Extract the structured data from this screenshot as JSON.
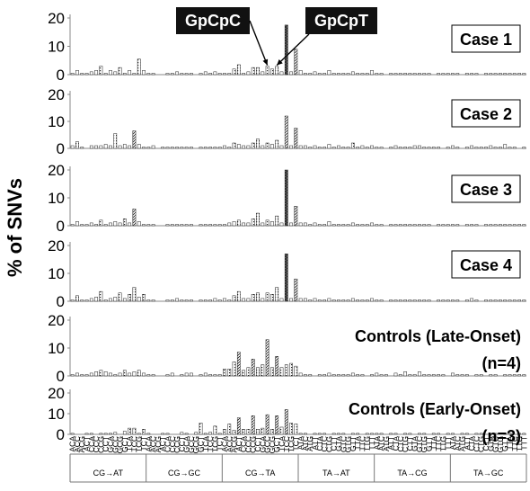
{
  "chart_data": {
    "type": "bar",
    "ylabel": "% of SNVs",
    "ylim": [
      0,
      20
    ],
    "yticks": [
      0,
      10,
      20
    ],
    "grid": false,
    "groups": [
      "CG→AT",
      "CG→GC",
      "CG→TA",
      "TA→AT",
      "TA→CG",
      "TA→GC"
    ],
    "categories": [
      "ACA",
      "ACC",
      "ACG",
      "ACT",
      "CCA",
      "CCC",
      "CCG",
      "CCT",
      "GCA",
      "GCC",
      "GCG",
      "GCT",
      "TCA",
      "TCC",
      "TCG",
      "TCT",
      "ACA",
      "ACC",
      "ACG",
      "ACT",
      "CCA",
      "CCC",
      "CCG",
      "CCT",
      "GCA",
      "GCC",
      "GCG",
      "GCT",
      "TCA",
      "TCC",
      "TCG",
      "TCT",
      "ACA",
      "ACC",
      "ACG",
      "ACT",
      "CCA",
      "CCC",
      "CCG",
      "CCT",
      "GCA",
      "GCC",
      "GCG",
      "GCT",
      "TCA",
      "TCC",
      "TCG",
      "TCT",
      "ATA",
      "ATC",
      "ATG",
      "ATT",
      "CTA",
      "CTC",
      "CTG",
      "CTT",
      "GTA",
      "GTC",
      "GTG",
      "GTT",
      "TTA",
      "TTC",
      "TTG",
      "TTT",
      "ATA",
      "ATC",
      "ATG",
      "ATT",
      "CTA",
      "CTC",
      "CTG",
      "CTT",
      "GTA",
      "GTC",
      "GTG",
      "GTT",
      "TTA",
      "TTC",
      "TTG",
      "TTT",
      "ATA",
      "ATC",
      "ATG",
      "ATT",
      "CTA",
      "CTC",
      "CTG",
      "CTT",
      "GTA",
      "GTC",
      "GTG",
      "GTT",
      "TTA",
      "TTC",
      "TTG",
      "TTT"
    ],
    "annotations": [
      {
        "text": "GpCpC",
        "panel": 0,
        "category_index": 41
      },
      {
        "text": "GpCpT",
        "panel": 0,
        "category_index": 43
      }
    ],
    "series": [
      {
        "name": "Case 1",
        "values": [
          0.5,
          1.5,
          0.5,
          0.5,
          1,
          1.5,
          3,
          0.5,
          1.5,
          1,
          2.5,
          0.5,
          1.5,
          0.5,
          5.5,
          1.5,
          0.5,
          0.5,
          0,
          0,
          0.5,
          0.5,
          1,
          0.5,
          0.5,
          0.5,
          0,
          0.5,
          1,
          0.5,
          1,
          0.5,
          0.5,
          0.5,
          2,
          3.5,
          0.5,
          1,
          2.5,
          2.5,
          1,
          3,
          2,
          3,
          1,
          17.5,
          1,
          9,
          1.5,
          0.5,
          0.5,
          1,
          0.5,
          0.5,
          1.5,
          0.5,
          0.5,
          0.5,
          0.5,
          1,
          0.5,
          0.5,
          0.5,
          1.5,
          0.5,
          0.5,
          0,
          0.5,
          0.5,
          0.5,
          0.5,
          0.5,
          0.5,
          0.5,
          0.5,
          0.5,
          0,
          0.5,
          0.5,
          0.5,
          0.5,
          0.5,
          0,
          0.5,
          0.5,
          0.5,
          0,
          0.5,
          0.5,
          0.5,
          0.5,
          0.5,
          0.5,
          0.5,
          0.5,
          0.5
        ]
      },
      {
        "name": "Case 2",
        "values": [
          1,
          2.5,
          0.5,
          0,
          1,
          1,
          1,
          1.5,
          1,
          5.5,
          1,
          1.5,
          1,
          6.5,
          1.5,
          0.5,
          0.5,
          1,
          0,
          0.5,
          0.5,
          0.5,
          0.5,
          0.5,
          0.5,
          0.5,
          0,
          0.5,
          0.5,
          0.5,
          0.5,
          0.5,
          1,
          0.5,
          2,
          1.5,
          1,
          1,
          2,
          3.5,
          1,
          2,
          1.5,
          3,
          1,
          12,
          1,
          7.5,
          1,
          1,
          0.5,
          1,
          0.5,
          0.5,
          1.5,
          0.5,
          1,
          0.5,
          0.5,
          2,
          0.5,
          1,
          0.5,
          1,
          0.5,
          0.5,
          0,
          0.5,
          1,
          0.5,
          0.5,
          0.5,
          1,
          1,
          0.5,
          0.5,
          0.5,
          0.5,
          0,
          0.5,
          1,
          0.5,
          0,
          0.5,
          1,
          0.5,
          0.5,
          0.5,
          1,
          0.5,
          0.5,
          1.5,
          0.5,
          0.5,
          0,
          0.5
        ]
      },
      {
        "name": "Case 3",
        "values": [
          0.5,
          1.5,
          0.5,
          0.5,
          1,
          0.5,
          2,
          0.5,
          1,
          1.5,
          1,
          2.5,
          1,
          6,
          1.5,
          0.5,
          0.5,
          0.5,
          0,
          0,
          0.5,
          0.5,
          0.5,
          0.5,
          0.5,
          0.5,
          0,
          0.5,
          0.5,
          0.5,
          0.5,
          0.5,
          0.5,
          1,
          1.5,
          2,
          1,
          1,
          2.5,
          4.5,
          1,
          2,
          1.5,
          3.5,
          1,
          20,
          1,
          7,
          1,
          1,
          0.5,
          1,
          0.5,
          0.5,
          1.5,
          0.5,
          0.5,
          0.5,
          0.5,
          1,
          0.5,
          0.5,
          0.5,
          1,
          0.5,
          0.5,
          0,
          0.5,
          0.5,
          0.5,
          0.5,
          0.5,
          0.5,
          0.5,
          0.5,
          0.5,
          0,
          0.5,
          0.5,
          0.5,
          0.5,
          0.5,
          0,
          0.5,
          0.5,
          0.5,
          0,
          0.5,
          0.5,
          0.5,
          0.5,
          0.5,
          0.5,
          0.5,
          0.5,
          0.5
        ]
      },
      {
        "name": "Case 4",
        "values": [
          0.5,
          2,
          0.5,
          0.5,
          1,
          1.5,
          3.5,
          0.5,
          1,
          1.5,
          3,
          1,
          2.5,
          5,
          1.5,
          2.5,
          0.5,
          0.5,
          0,
          0,
          0.5,
          0.5,
          1,
          0.5,
          0.5,
          0.5,
          0,
          0.5,
          0.5,
          0.5,
          1,
          0.5,
          1,
          0.5,
          2,
          3.5,
          1,
          1,
          2.5,
          3,
          1,
          3,
          2.5,
          5,
          1,
          17,
          1,
          8,
          1,
          1,
          0.5,
          1,
          0.5,
          0.5,
          1,
          0.5,
          0.5,
          0.5,
          0.5,
          1,
          0.5,
          0.5,
          0.5,
          1,
          0.5,
          0.5,
          0,
          0.5,
          0.5,
          0.5,
          0.5,
          0.5,
          0.5,
          0.5,
          0.5,
          0.5,
          0,
          0.5,
          0.5,
          0.5,
          0.5,
          0.5,
          0,
          0.5,
          1,
          0.5,
          0,
          0.5,
          0.5,
          0.5,
          0.5,
          0.5,
          0.5,
          0.5,
          0.5,
          0.5
        ]
      },
      {
        "name": "Controls (Late-Onset) (n=4)",
        "values": [
          0.5,
          1,
          0.5,
          0.5,
          1,
          1.5,
          2,
          1.5,
          1,
          0.5,
          1,
          2,
          1,
          1.5,
          2,
          1,
          0.5,
          0.5,
          0,
          0,
          0.5,
          1,
          0,
          0.5,
          1,
          1,
          0,
          0.5,
          1,
          0.5,
          0.5,
          0.5,
          2.5,
          2.5,
          5,
          8.5,
          2,
          3,
          6,
          3,
          4,
          13,
          3,
          7,
          3,
          4,
          4.5,
          3.5,
          1,
          0.5,
          0.5,
          0,
          0.5,
          0.5,
          1,
          0.5,
          0.5,
          0.5,
          0.5,
          1,
          0.5,
          0.5,
          0,
          0.5,
          1,
          0.5,
          0.5,
          0,
          1,
          0.5,
          1.5,
          0.5,
          0.5,
          1.5,
          0.5,
          0.5,
          0.5,
          0.5,
          0.5,
          0,
          1,
          0.5,
          0.5,
          0.5,
          0,
          0.5,
          0.5,
          0,
          0.5,
          0.5,
          0,
          0.5,
          0.5,
          0.5,
          0.5,
          0.5
        ]
      },
      {
        "name": "Controls (Early-Onset) (n=3)",
        "values": [
          0.5,
          0,
          0,
          0.5,
          0.5,
          0,
          0.5,
          0.5,
          0.5,
          1,
          0,
          1.5,
          3,
          3,
          0.5,
          2.5,
          0.5,
          0,
          0,
          0.5,
          0.5,
          0,
          0,
          1,
          0.5,
          0,
          1,
          5.5,
          0.5,
          1,
          4,
          0.5,
          2.5,
          5,
          2,
          8,
          2.5,
          2.5,
          9,
          2.5,
          3,
          9.5,
          2.5,
          9,
          3.5,
          12,
          5.5,
          5,
          0.5,
          0.5,
          0,
          0.5,
          0.5,
          0.5,
          0,
          0.5,
          0.5,
          0.5,
          0,
          0.5,
          0.5,
          0,
          0.5,
          0.5,
          0.5,
          0.5,
          0,
          0.5,
          0.5,
          0,
          0.5,
          0.5,
          0,
          0.5,
          0.5,
          0,
          0.5,
          0.5,
          0,
          0.5,
          0.5,
          0,
          0.5,
          0.5,
          0,
          0.5,
          0.5,
          0,
          0.5,
          0.5,
          0,
          0.5,
          0.5,
          0,
          0.5,
          0.5
        ]
      }
    ]
  }
}
